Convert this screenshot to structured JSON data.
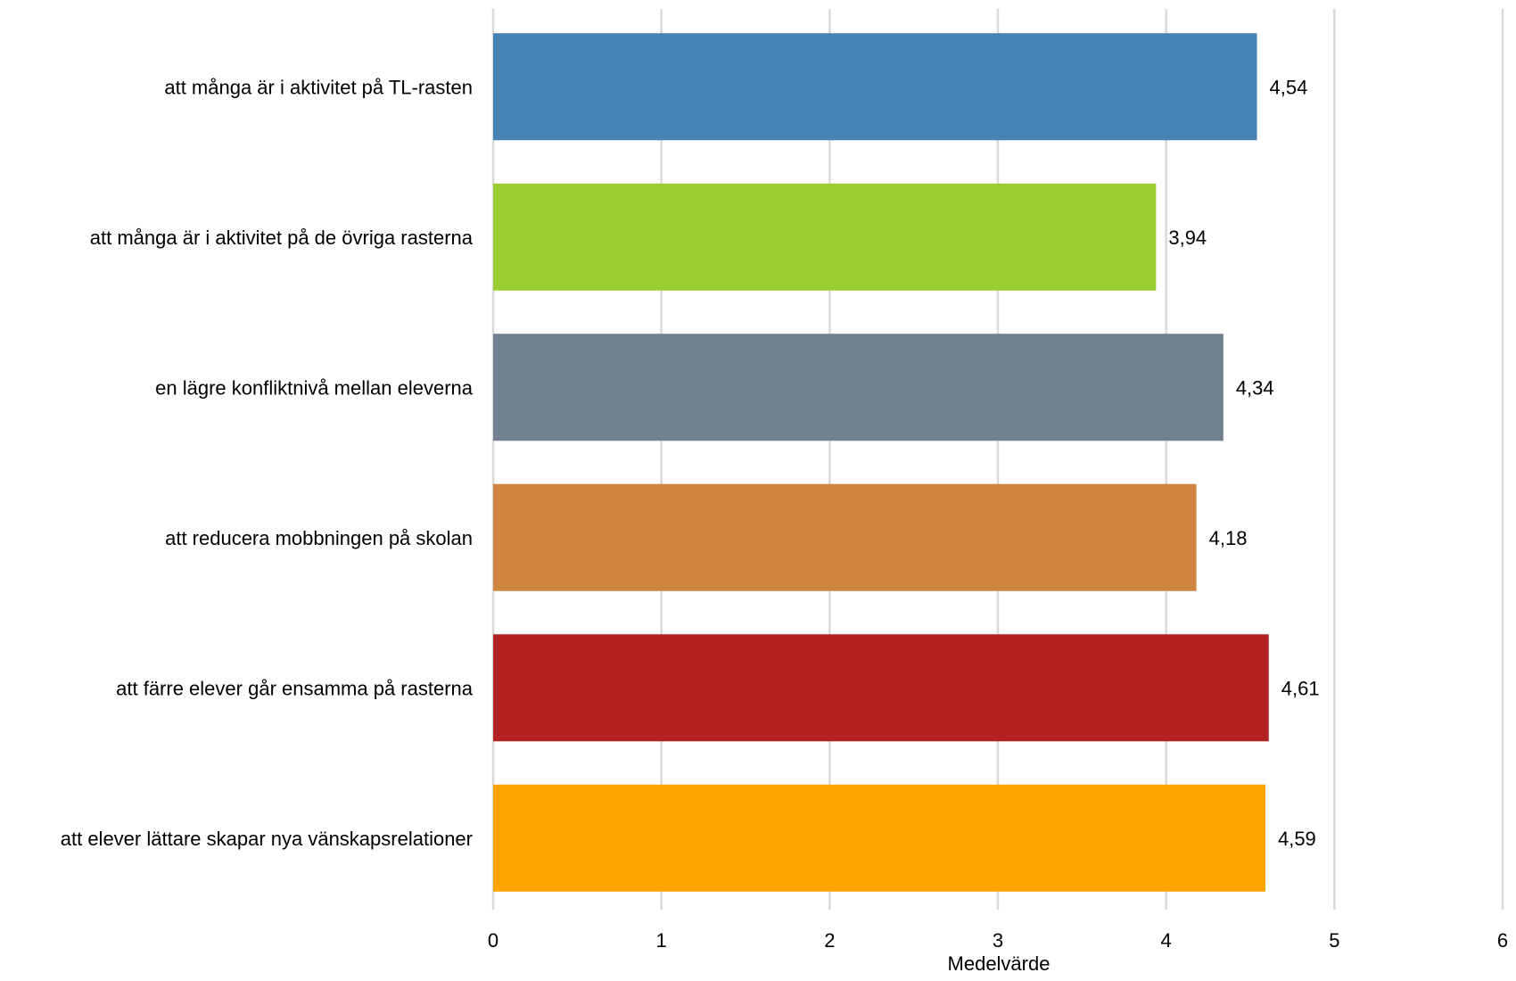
{
  "chart_data": {
    "type": "bar",
    "orientation": "horizontal",
    "categories": [
      "att många är i aktivitet på TL-rasten",
      "att många är i aktivitet på de övriga rasterna",
      "en lägre konfliktnivå mellan eleverna",
      "att reducera mobbningen på skolan",
      "att färre elever går ensamma på rasterna",
      "att elever lättare skapar nya vänskapsrelationer"
    ],
    "values": [
      4.54,
      3.94,
      4.34,
      4.18,
      4.61,
      4.59
    ],
    "data_labels": [
      "4,54",
      "3,94",
      "4,34",
      "4,18",
      "4,61",
      "4,59"
    ],
    "colors": [
      "#4682B4",
      "#9ACD32",
      "#708090",
      "#CD853F",
      "#B22222",
      "#FFA500"
    ],
    "xlabel": "Medelvärde",
    "xlim": [
      0,
      6
    ],
    "xticks": [
      0,
      1,
      2,
      3,
      4,
      5,
      6
    ],
    "xtick_labels": [
      "0",
      "1",
      "2",
      "3",
      "4",
      "5",
      "6"
    ],
    "grid": "vertical",
    "gridline_color": "#D9D9D9",
    "legend": "none"
  }
}
